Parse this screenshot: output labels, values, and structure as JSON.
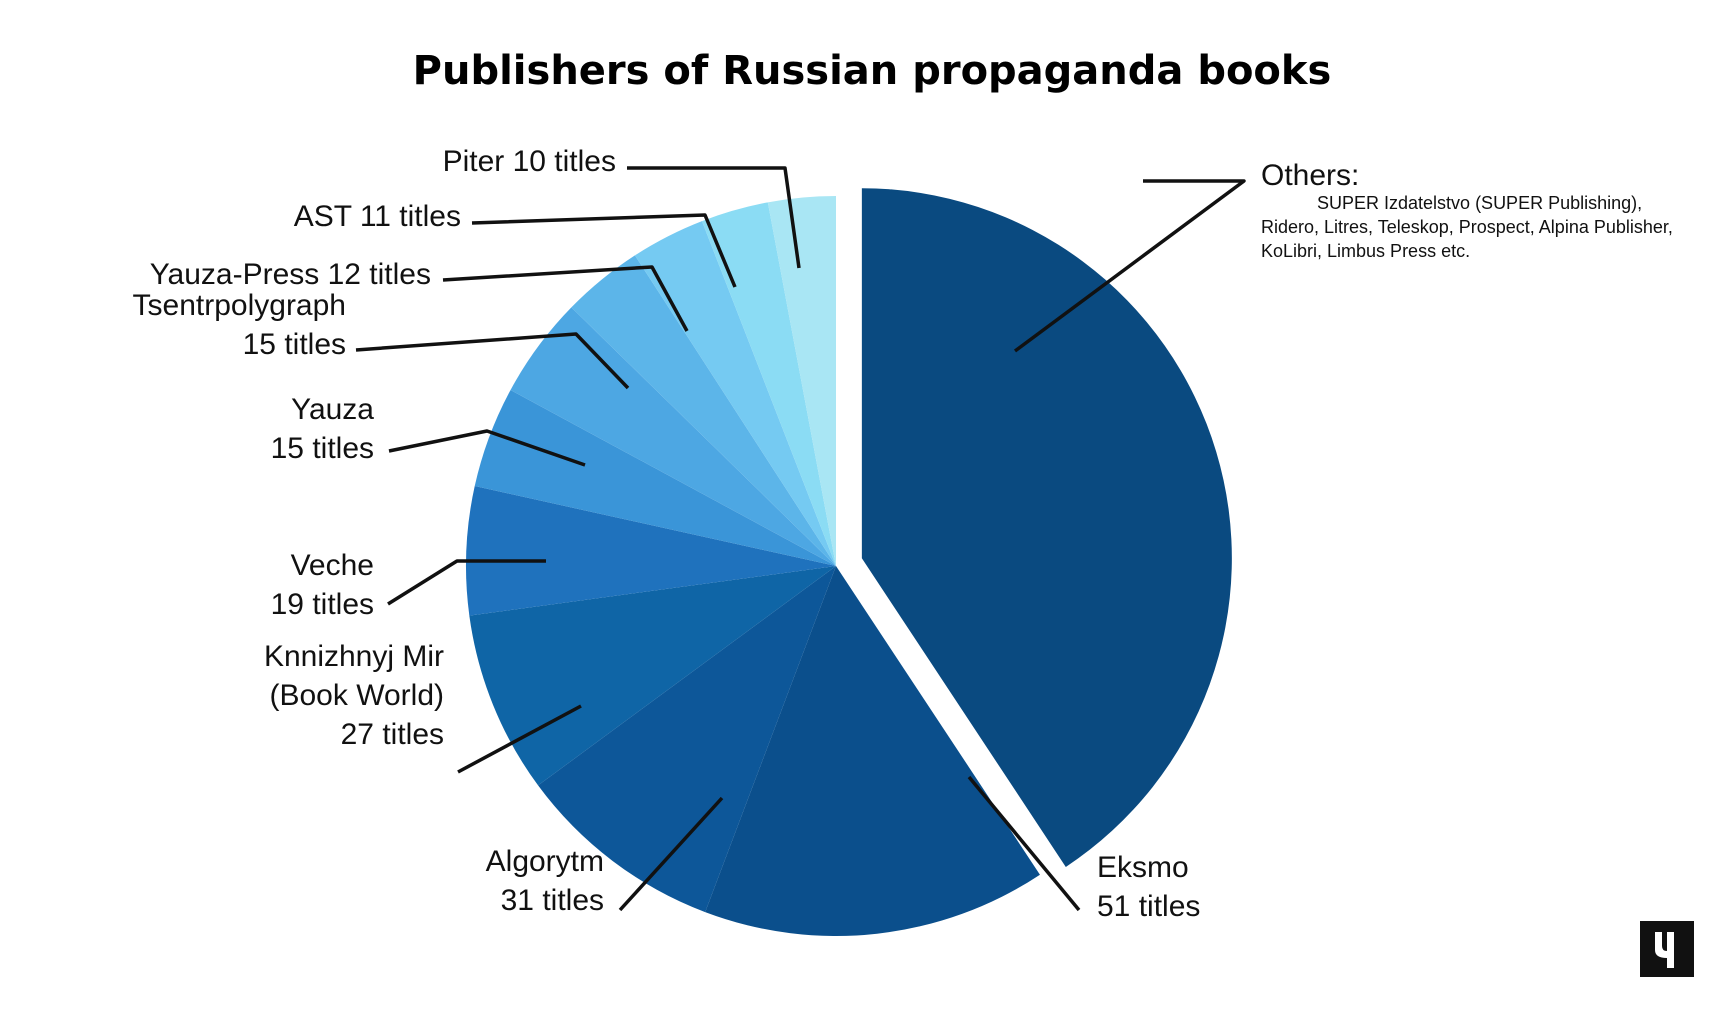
{
  "chart_data": {
    "type": "pie",
    "title": "Publishers of Russian propaganda books",
    "slices": [
      {
        "name": "Others",
        "value": 138,
        "color": "#0a4a80",
        "label_head": "Others:",
        "label_lines": [
          "SUPER Izdatelstvo (SUPER Publishing),",
          "Ridero, Litres, Teleskop, Prospect, Alpina Publisher,",
          "KoLibri, Limbus Press etc."
        ]
      },
      {
        "name": "Eksmo",
        "value": 51,
        "color": "#0b4f8c",
        "label_lines": [
          "Eksmo",
          "51 titles"
        ]
      },
      {
        "name": "Algorytm",
        "value": 31,
        "color": "#0d5799",
        "label_lines": [
          "Algorytm",
          "31 titles"
        ]
      },
      {
        "name": "Knnizhnyj Mir (Book World)",
        "value": 27,
        "color": "#0f65a6",
        "label_lines": [
          "Knnizhnyj Mir",
          "(Book World)",
          "27 titles"
        ]
      },
      {
        "name": "Veche",
        "value": 19,
        "color": "#1f72bd",
        "label_lines": [
          "Veche",
          "19 titles"
        ]
      },
      {
        "name": "Yauza",
        "value": 15,
        "color": "#3a95d8",
        "label_lines": [
          "Yauza",
          "15 titles"
        ]
      },
      {
        "name": "Tsentrpolygraph",
        "value": 15,
        "color": "#4da7e3",
        "label_lines": [
          "Tsentrpolygraph",
          "15 titles"
        ]
      },
      {
        "name": "Yauza-Press",
        "value": 12,
        "color": "#5cb5e9",
        "label_lines": [
          "Yauza-Press 12 titles"
        ]
      },
      {
        "name": "AST",
        "value": 11,
        "color": "#75caf2",
        "label_lines": [
          "AST 11 titles"
        ]
      },
      {
        "name": "Piter",
        "value": 10,
        "color": "#8bdcf4",
        "label_lines": [
          "Piter 10 titles"
        ]
      },
      {
        "name": "Unlabeled",
        "value": 10,
        "color": "#a9e6f4",
        "label_lines": []
      }
    ],
    "start": "12 o'clock",
    "direction": "clockwise",
    "exploded_slice": "Others",
    "legend": "none"
  },
  "logo": {
    "text": "Ч"
  }
}
